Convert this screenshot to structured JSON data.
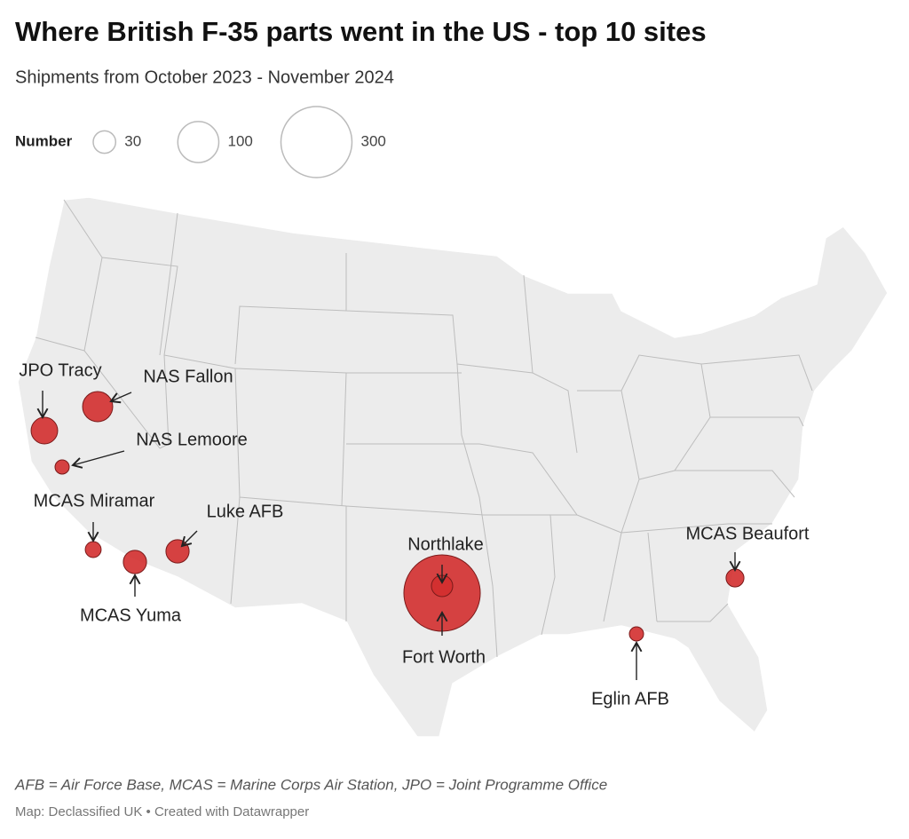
{
  "chart_data": {
    "type": "bubble-map",
    "title": "Where British F-35 parts went in the US - top 10 sites",
    "subtitle": "Shipments from October 2023 - November 2024",
    "legend_title": "Number",
    "legend_sizes": [
      30,
      100,
      300
    ],
    "color": "#d32f2f",
    "sites": [
      {
        "name": "Fort Worth",
        "value": 347
      },
      {
        "name": "Northlake",
        "value": 27
      },
      {
        "name": "JPO Tracy",
        "value": 42
      },
      {
        "name": "NAS Fallon",
        "value": 54
      },
      {
        "name": "NAS Lemoore",
        "value": 12
      },
      {
        "name": "MCAS Miramar",
        "value": 15
      },
      {
        "name": "MCAS Yuma",
        "value": 32
      },
      {
        "name": "Luke AFB",
        "value": 32
      },
      {
        "name": "MCAS Beaufort",
        "value": 19
      },
      {
        "name": "Eglin AFB",
        "value": 12
      }
    ],
    "note": "AFB = Air Force Base, MCAS = Marine Corps Air Station, JPO = Joint Programme Office",
    "source": "Map: Declassified UK • Created with Datawrapper"
  }
}
